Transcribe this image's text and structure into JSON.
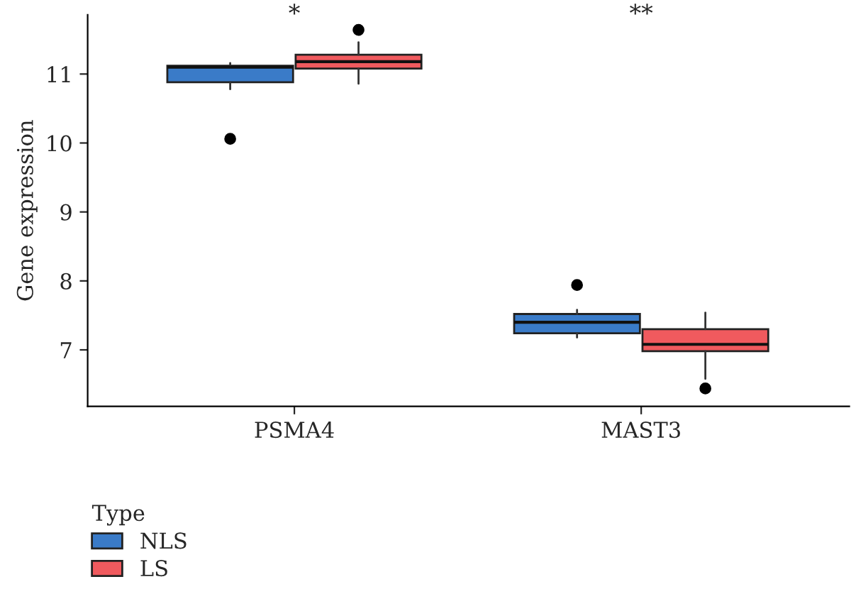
{
  "chart_data": {
    "type": "box",
    "ylabel": "Gene expression",
    "legend_title": "Type",
    "categories": [
      "PSMA4",
      "MAST3"
    ],
    "series": [
      {
        "name": "NLS",
        "color": "#3a7bc8",
        "boxes": [
          {
            "low": 10.78,
            "q1": 10.88,
            "median": 11.1,
            "q3": 11.12,
            "high": 11.16,
            "outliers": [
              10.06
            ]
          },
          {
            "low": 7.18,
            "q1": 7.24,
            "median": 7.4,
            "q3": 7.52,
            "high": 7.58,
            "outliers": [
              7.94
            ]
          }
        ]
      },
      {
        "name": "LS",
        "color": "#f05a5e",
        "boxes": [
          {
            "low": 10.86,
            "q1": 11.08,
            "median": 11.18,
            "q3": 11.28,
            "high": 11.46,
            "outliers": [
              11.64
            ]
          },
          {
            "low": 6.58,
            "q1": 6.98,
            "median": 7.08,
            "q3": 7.3,
            "high": 7.54,
            "outliers": [
              6.44
            ]
          }
        ]
      }
    ],
    "ylim": [
      6.18,
      11.86
    ],
    "yticks": [
      7,
      8,
      9,
      10,
      11
    ],
    "annotations": [
      "*",
      "**"
    ],
    "grid": false,
    "legend": "bottom left"
  }
}
